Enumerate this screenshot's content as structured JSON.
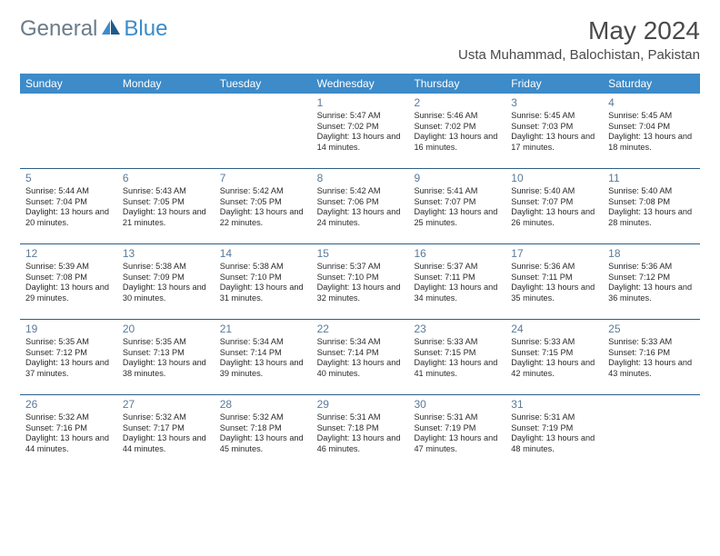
{
  "logo": {
    "text1": "General",
    "text2": "Blue"
  },
  "title": "May 2024",
  "location": "Usta Muhammad, Balochistan, Pakistan",
  "colors": {
    "header_bg": "#3d8bc9",
    "header_text": "#ffffff",
    "daynum": "#5a7a9a",
    "rule": "#2c5f8a",
    "body_text": "#333333",
    "page_bg": "#ffffff",
    "logo_gray": "#6b7b8a",
    "logo_blue": "#3d8bc9"
  },
  "dayLabels": [
    "Sunday",
    "Monday",
    "Tuesday",
    "Wednesday",
    "Thursday",
    "Friday",
    "Saturday"
  ],
  "weeks": [
    [
      {
        "n": "",
        "sunrise": "",
        "sunset": "",
        "daylight": "",
        "empty": true
      },
      {
        "n": "",
        "sunrise": "",
        "sunset": "",
        "daylight": "",
        "empty": true
      },
      {
        "n": "",
        "sunrise": "",
        "sunset": "",
        "daylight": "",
        "empty": true
      },
      {
        "n": "1",
        "sunrise": "Sunrise: 5:47 AM",
        "sunset": "Sunset: 7:02 PM",
        "daylight": "Daylight: 13 hours and 14 minutes."
      },
      {
        "n": "2",
        "sunrise": "Sunrise: 5:46 AM",
        "sunset": "Sunset: 7:02 PM",
        "daylight": "Daylight: 13 hours and 16 minutes."
      },
      {
        "n": "3",
        "sunrise": "Sunrise: 5:45 AM",
        "sunset": "Sunset: 7:03 PM",
        "daylight": "Daylight: 13 hours and 17 minutes."
      },
      {
        "n": "4",
        "sunrise": "Sunrise: 5:45 AM",
        "sunset": "Sunset: 7:04 PM",
        "daylight": "Daylight: 13 hours and 18 minutes."
      }
    ],
    [
      {
        "n": "5",
        "sunrise": "Sunrise: 5:44 AM",
        "sunset": "Sunset: 7:04 PM",
        "daylight": "Daylight: 13 hours and 20 minutes."
      },
      {
        "n": "6",
        "sunrise": "Sunrise: 5:43 AM",
        "sunset": "Sunset: 7:05 PM",
        "daylight": "Daylight: 13 hours and 21 minutes."
      },
      {
        "n": "7",
        "sunrise": "Sunrise: 5:42 AM",
        "sunset": "Sunset: 7:05 PM",
        "daylight": "Daylight: 13 hours and 22 minutes."
      },
      {
        "n": "8",
        "sunrise": "Sunrise: 5:42 AM",
        "sunset": "Sunset: 7:06 PM",
        "daylight": "Daylight: 13 hours and 24 minutes."
      },
      {
        "n": "9",
        "sunrise": "Sunrise: 5:41 AM",
        "sunset": "Sunset: 7:07 PM",
        "daylight": "Daylight: 13 hours and 25 minutes."
      },
      {
        "n": "10",
        "sunrise": "Sunrise: 5:40 AM",
        "sunset": "Sunset: 7:07 PM",
        "daylight": "Daylight: 13 hours and 26 minutes."
      },
      {
        "n": "11",
        "sunrise": "Sunrise: 5:40 AM",
        "sunset": "Sunset: 7:08 PM",
        "daylight": "Daylight: 13 hours and 28 minutes."
      }
    ],
    [
      {
        "n": "12",
        "sunrise": "Sunrise: 5:39 AM",
        "sunset": "Sunset: 7:08 PM",
        "daylight": "Daylight: 13 hours and 29 minutes."
      },
      {
        "n": "13",
        "sunrise": "Sunrise: 5:38 AM",
        "sunset": "Sunset: 7:09 PM",
        "daylight": "Daylight: 13 hours and 30 minutes."
      },
      {
        "n": "14",
        "sunrise": "Sunrise: 5:38 AM",
        "sunset": "Sunset: 7:10 PM",
        "daylight": "Daylight: 13 hours and 31 minutes."
      },
      {
        "n": "15",
        "sunrise": "Sunrise: 5:37 AM",
        "sunset": "Sunset: 7:10 PM",
        "daylight": "Daylight: 13 hours and 32 minutes."
      },
      {
        "n": "16",
        "sunrise": "Sunrise: 5:37 AM",
        "sunset": "Sunset: 7:11 PM",
        "daylight": "Daylight: 13 hours and 34 minutes."
      },
      {
        "n": "17",
        "sunrise": "Sunrise: 5:36 AM",
        "sunset": "Sunset: 7:11 PM",
        "daylight": "Daylight: 13 hours and 35 minutes."
      },
      {
        "n": "18",
        "sunrise": "Sunrise: 5:36 AM",
        "sunset": "Sunset: 7:12 PM",
        "daylight": "Daylight: 13 hours and 36 minutes."
      }
    ],
    [
      {
        "n": "19",
        "sunrise": "Sunrise: 5:35 AM",
        "sunset": "Sunset: 7:12 PM",
        "daylight": "Daylight: 13 hours and 37 minutes."
      },
      {
        "n": "20",
        "sunrise": "Sunrise: 5:35 AM",
        "sunset": "Sunset: 7:13 PM",
        "daylight": "Daylight: 13 hours and 38 minutes."
      },
      {
        "n": "21",
        "sunrise": "Sunrise: 5:34 AM",
        "sunset": "Sunset: 7:14 PM",
        "daylight": "Daylight: 13 hours and 39 minutes."
      },
      {
        "n": "22",
        "sunrise": "Sunrise: 5:34 AM",
        "sunset": "Sunset: 7:14 PM",
        "daylight": "Daylight: 13 hours and 40 minutes."
      },
      {
        "n": "23",
        "sunrise": "Sunrise: 5:33 AM",
        "sunset": "Sunset: 7:15 PM",
        "daylight": "Daylight: 13 hours and 41 minutes."
      },
      {
        "n": "24",
        "sunrise": "Sunrise: 5:33 AM",
        "sunset": "Sunset: 7:15 PM",
        "daylight": "Daylight: 13 hours and 42 minutes."
      },
      {
        "n": "25",
        "sunrise": "Sunrise: 5:33 AM",
        "sunset": "Sunset: 7:16 PM",
        "daylight": "Daylight: 13 hours and 43 minutes."
      }
    ],
    [
      {
        "n": "26",
        "sunrise": "Sunrise: 5:32 AM",
        "sunset": "Sunset: 7:16 PM",
        "daylight": "Daylight: 13 hours and 44 minutes."
      },
      {
        "n": "27",
        "sunrise": "Sunrise: 5:32 AM",
        "sunset": "Sunset: 7:17 PM",
        "daylight": "Daylight: 13 hours and 44 minutes."
      },
      {
        "n": "28",
        "sunrise": "Sunrise: 5:32 AM",
        "sunset": "Sunset: 7:18 PM",
        "daylight": "Daylight: 13 hours and 45 minutes."
      },
      {
        "n": "29",
        "sunrise": "Sunrise: 5:31 AM",
        "sunset": "Sunset: 7:18 PM",
        "daylight": "Daylight: 13 hours and 46 minutes."
      },
      {
        "n": "30",
        "sunrise": "Sunrise: 5:31 AM",
        "sunset": "Sunset: 7:19 PM",
        "daylight": "Daylight: 13 hours and 47 minutes."
      },
      {
        "n": "31",
        "sunrise": "Sunrise: 5:31 AM",
        "sunset": "Sunset: 7:19 PM",
        "daylight": "Daylight: 13 hours and 48 minutes."
      },
      {
        "n": "",
        "sunrise": "",
        "sunset": "",
        "daylight": "",
        "empty": true
      }
    ]
  ]
}
